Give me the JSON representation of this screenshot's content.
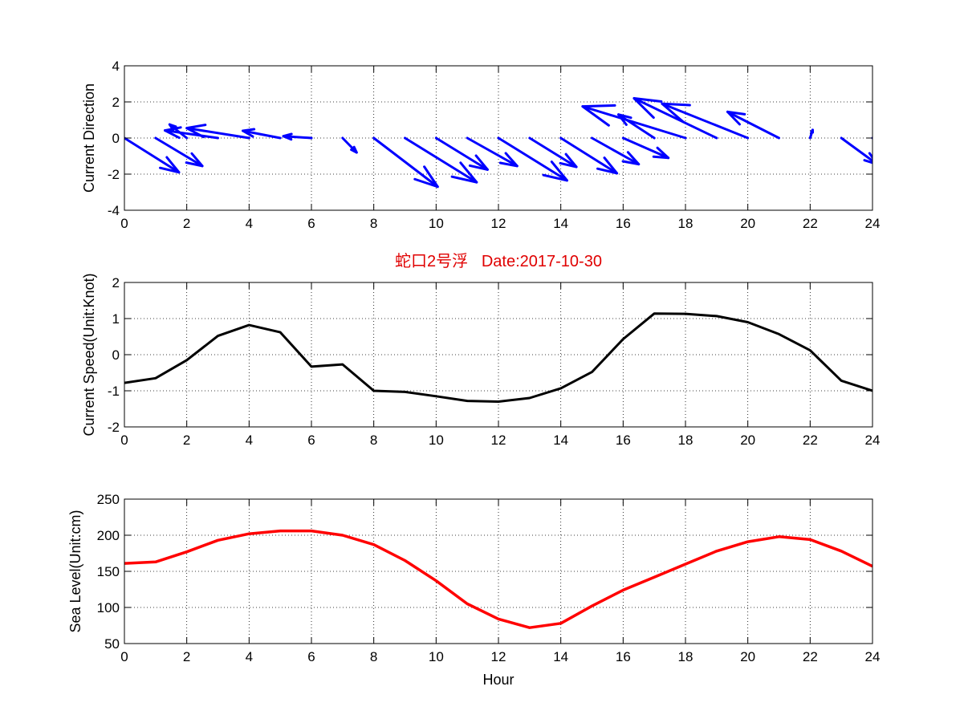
{
  "figure_title": "蛇口2号浮   Date:2017-10-30",
  "title_color": "#e00000",
  "chart_data": [
    {
      "type": "quiver",
      "ylabel": "Current Direction",
      "xlabel": "",
      "xlim": [
        0,
        24
      ],
      "ylim": [
        -4,
        4
      ],
      "xticks": [
        0,
        2,
        4,
        6,
        8,
        10,
        12,
        14,
        16,
        18,
        20,
        22,
        24
      ],
      "yticks": [
        -4,
        -2,
        0,
        2,
        4
      ],
      "grid": true,
      "color": "#0000ff",
      "x": [
        0,
        1,
        2,
        3,
        4,
        5,
        6,
        7,
        8,
        9,
        10,
        11,
        12,
        13,
        14,
        15,
        16,
        17,
        18,
        19,
        20,
        21,
        22,
        23,
        24
      ],
      "u": [
        1.75,
        1.5,
        -0.55,
        -1.7,
        -2.0,
        -1.2,
        -0.9,
        0.45,
        2.05,
        2.3,
        1.65,
        1.6,
        2.2,
        1.5,
        1.8,
        1.5,
        1.45,
        -1.15,
        -3.3,
        -2.65,
        -2.75,
        -1.65,
        0.08,
        1.15,
        1.0
      ],
      "v": [
        -1.9,
        -1.55,
        0.75,
        0.42,
        0.55,
        0.4,
        0.1,
        -0.8,
        -2.7,
        -2.45,
        -1.75,
        -1.55,
        -2.35,
        -1.6,
        -1.95,
        -1.45,
        -1.1,
        1.3,
        1.75,
        2.2,
        1.9,
        1.45,
        0.45,
        -1.45,
        -1.55
      ]
    },
    {
      "type": "line",
      "ylabel": "Current Speed(Unit:Knot)",
      "xlabel": "",
      "xlim": [
        0,
        24
      ],
      "ylim": [
        -2,
        2
      ],
      "xticks": [
        0,
        2,
        4,
        6,
        8,
        10,
        12,
        14,
        16,
        18,
        20,
        22,
        24
      ],
      "yticks": [
        -2,
        -1,
        0,
        1,
        2
      ],
      "grid": true,
      "color": "#000000",
      "x": [
        0,
        1,
        2,
        3,
        4,
        5,
        6,
        7,
        8,
        9,
        10,
        11,
        12,
        13,
        14,
        15,
        16,
        17,
        18,
        19,
        20,
        21,
        22,
        23,
        24
      ],
      "y": [
        -0.78,
        -0.65,
        -0.15,
        0.52,
        0.82,
        0.62,
        -0.33,
        -0.27,
        -1.0,
        -1.03,
        -1.15,
        -1.28,
        -1.3,
        -1.2,
        -0.93,
        -0.48,
        0.43,
        1.14,
        1.13,
        1.07,
        0.9,
        0.57,
        0.12,
        -0.72,
        -1.0
      ]
    },
    {
      "type": "line",
      "ylabel": "Sea Level(Unit:cm)",
      "xlabel": "Hour",
      "xlim": [
        0,
        24
      ],
      "ylim": [
        50,
        250
      ],
      "xticks": [
        0,
        2,
        4,
        6,
        8,
        10,
        12,
        14,
        16,
        18,
        20,
        22,
        24
      ],
      "yticks": [
        50,
        100,
        150,
        200,
        250
      ],
      "grid": true,
      "color": "#ff0000",
      "x": [
        0,
        1,
        2,
        3,
        4,
        5,
        6,
        7,
        8,
        9,
        10,
        11,
        12,
        13,
        14,
        15,
        16,
        17,
        18,
        19,
        20,
        21,
        22,
        23,
        24
      ],
      "y": [
        161,
        163,
        177,
        193,
        202,
        206,
        206,
        200,
        187,
        165,
        137,
        105,
        84,
        72,
        78,
        102,
        124,
        142,
        160,
        178,
        191,
        198,
        194,
        178,
        157
      ]
    }
  ]
}
